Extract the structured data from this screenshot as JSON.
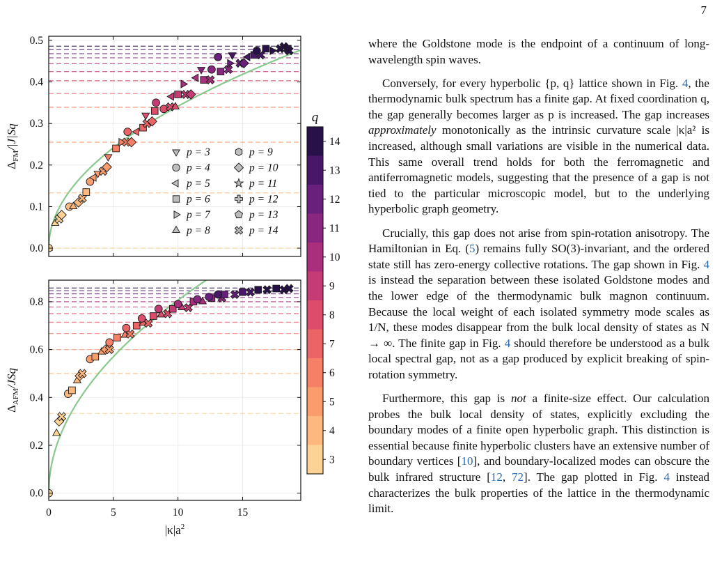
{
  "page_number": "7",
  "figure": {
    "top_panel": {
      "ylabel_main": "Δ",
      "ylabel_sub": "FM",
      "ylabel_tail": "/|J|Sq"
    },
    "bottom_panel": {
      "ylabel_main": "Δ",
      "ylabel_sub": "AFM",
      "ylabel_tail": "/JSq",
      "xlabel_main": "|κ|a",
      "xlabel_sup": "2"
    },
    "colorbar": {
      "label": "q",
      "ticks": [
        3,
        4,
        5,
        6,
        7,
        8,
        9,
        10,
        11,
        12,
        13,
        14
      ]
    },
    "legend": {
      "entries": [
        {
          "label": "p = 3",
          "marker": "triangle-down"
        },
        {
          "label": "p = 4",
          "marker": "circle"
        },
        {
          "label": "p = 5",
          "marker": "triangle-left"
        },
        {
          "label": "p = 6",
          "marker": "square"
        },
        {
          "label": "p = 7",
          "marker": "triangle-right"
        },
        {
          "label": "p = 8",
          "marker": "triangle-up"
        },
        {
          "label": "p = 9",
          "marker": "hexagon"
        },
        {
          "label": "p = 10",
          "marker": "diamond"
        },
        {
          "label": "p = 11",
          "marker": "star"
        },
        {
          "label": "p = 12",
          "marker": "plus"
        },
        {
          "label": "p = 13",
          "marker": "pentagon"
        },
        {
          "label": "p = 14",
          "marker": "x"
        }
      ]
    }
  },
  "chart_data": [
    {
      "type": "scatter",
      "panel": "top",
      "xlim": [
        0,
        19.5
      ],
      "ylim": [
        -0.02,
        0.51
      ],
      "xticks": [
        0,
        5,
        10,
        15
      ],
      "yticks": [
        0.0,
        0.1,
        0.2,
        0.3,
        0.4,
        0.5
      ],
      "ytick_labels": [
        "0.0",
        "0.1",
        "0.2",
        "0.3",
        "0.4",
        "0.5"
      ],
      "xtick_labels": [
        "",
        "",
        "",
        ""
      ],
      "grid": true,
      "legend_position": "center-right",
      "hlines_q": [
        3,
        4,
        5,
        6,
        7,
        8,
        9,
        10,
        11,
        12,
        13,
        14
      ],
      "hlines_y": [
        0.0,
        0.133,
        0.255,
        0.339,
        0.372,
        0.403,
        0.425,
        0.444,
        0.458,
        0.468,
        0.478,
        0.486
      ],
      "curve_coef": 0.108,
      "points": [
        {
          "x": 0.0,
          "y": 0.0,
          "q": 3,
          "m": "triangle-up"
        },
        {
          "x": 0.0,
          "y": 0.0,
          "q": 3,
          "m": "circle"
        },
        {
          "x": 0.5,
          "y": 0.06,
          "q": 3,
          "m": "triangle-up"
        },
        {
          "x": 0.8,
          "y": 0.07,
          "q": 3,
          "m": "x"
        },
        {
          "x": 1.0,
          "y": 0.08,
          "q": 3,
          "m": "diamond"
        },
        {
          "x": 1.6,
          "y": 0.1,
          "q": 4,
          "m": "circle"
        },
        {
          "x": 1.9,
          "y": 0.1,
          "q": 4,
          "m": "triangle-up"
        },
        {
          "x": 2.3,
          "y": 0.11,
          "q": 4,
          "m": "diamond"
        },
        {
          "x": 2.6,
          "y": 0.12,
          "q": 4,
          "m": "x"
        },
        {
          "x": 2.9,
          "y": 0.135,
          "q": 4,
          "m": "square"
        },
        {
          "x": 3.2,
          "y": 0.16,
          "q": 5,
          "m": "circle"
        },
        {
          "x": 3.5,
          "y": 0.17,
          "q": 5,
          "m": "triangle-left"
        },
        {
          "x": 3.8,
          "y": 0.18,
          "q": 5,
          "m": "triangle-down"
        },
        {
          "x": 4.2,
          "y": 0.185,
          "q": 5,
          "m": "x"
        },
        {
          "x": 4.5,
          "y": 0.195,
          "q": 5,
          "m": "diamond"
        },
        {
          "x": 4.6,
          "y": 0.22,
          "q": 6,
          "m": "triangle-down"
        },
        {
          "x": 5.2,
          "y": 0.24,
          "q": 6,
          "m": "square"
        },
        {
          "x": 5.6,
          "y": 0.255,
          "q": 6,
          "m": "triangle-right"
        },
        {
          "x": 6.0,
          "y": 0.255,
          "q": 6,
          "m": "x"
        },
        {
          "x": 6.4,
          "y": 0.255,
          "q": 6,
          "m": "diamond"
        },
        {
          "x": 6.1,
          "y": 0.28,
          "q": 7,
          "m": "circle"
        },
        {
          "x": 6.8,
          "y": 0.28,
          "q": 7,
          "m": "triangle-left"
        },
        {
          "x": 7.3,
          "y": 0.29,
          "q": 7,
          "m": "square"
        },
        {
          "x": 7.6,
          "y": 0.3,
          "q": 7,
          "m": "x"
        },
        {
          "x": 8.0,
          "y": 0.305,
          "q": 7,
          "m": "diamond"
        },
        {
          "x": 7.5,
          "y": 0.32,
          "q": 8,
          "m": "triangle-down"
        },
        {
          "x": 8.2,
          "y": 0.33,
          "q": 8,
          "m": "square"
        },
        {
          "x": 8.9,
          "y": 0.335,
          "q": 8,
          "m": "circle"
        },
        {
          "x": 9.4,
          "y": 0.34,
          "q": 8,
          "m": "x"
        },
        {
          "x": 9.8,
          "y": 0.34,
          "q": 8,
          "m": "triangle-up"
        },
        {
          "x": 8.3,
          "y": 0.35,
          "q": 9,
          "m": "circle"
        },
        {
          "x": 9.5,
          "y": 0.365,
          "q": 9,
          "m": "triangle-left"
        },
        {
          "x": 10.0,
          "y": 0.37,
          "q": 9,
          "m": "square"
        },
        {
          "x": 10.6,
          "y": 0.37,
          "q": 9,
          "m": "x"
        },
        {
          "x": 11.0,
          "y": 0.37,
          "q": 9,
          "m": "diamond"
        },
        {
          "x": 10.4,
          "y": 0.395,
          "q": 10,
          "m": "triangle-right"
        },
        {
          "x": 11.4,
          "y": 0.41,
          "q": 10,
          "m": "triangle-left"
        },
        {
          "x": 12.0,
          "y": 0.405,
          "q": 10,
          "m": "square"
        },
        {
          "x": 12.5,
          "y": 0.405,
          "q": 10,
          "m": "x"
        },
        {
          "x": 11.8,
          "y": 0.43,
          "q": 11,
          "m": "triangle-down"
        },
        {
          "x": 12.6,
          "y": 0.43,
          "q": 11,
          "m": "circle"
        },
        {
          "x": 13.3,
          "y": 0.425,
          "q": 11,
          "m": "square"
        },
        {
          "x": 13.9,
          "y": 0.43,
          "q": 11,
          "m": "x"
        },
        {
          "x": 13.1,
          "y": 0.46,
          "q": 12,
          "m": "circle"
        },
        {
          "x": 14.0,
          "y": 0.445,
          "q": 12,
          "m": "triangle-right"
        },
        {
          "x": 14.8,
          "y": 0.445,
          "q": 12,
          "m": "x"
        },
        {
          "x": 15.1,
          "y": 0.445,
          "q": 12,
          "m": "diamond"
        },
        {
          "x": 14.2,
          "y": 0.465,
          "q": 13,
          "m": "triangle-down"
        },
        {
          "x": 15.4,
          "y": 0.46,
          "q": 13,
          "m": "triangle-left"
        },
        {
          "x": 15.9,
          "y": 0.465,
          "q": 13,
          "m": "square"
        },
        {
          "x": 16.4,
          "y": 0.465,
          "q": 13,
          "m": "x"
        },
        {
          "x": 16.1,
          "y": 0.475,
          "q": 14,
          "m": "circle"
        },
        {
          "x": 16.8,
          "y": 0.48,
          "q": 14,
          "m": "square"
        },
        {
          "x": 17.3,
          "y": 0.475,
          "q": 14,
          "m": "triangle-right"
        },
        {
          "x": 17.9,
          "y": 0.48,
          "q": 14,
          "m": "x"
        },
        {
          "x": 18.2,
          "y": 0.485,
          "q": 14,
          "m": "x"
        },
        {
          "x": 18.5,
          "y": 0.48,
          "q": 14,
          "m": "square"
        },
        {
          "x": 18.6,
          "y": 0.475,
          "q": 14,
          "m": "x"
        }
      ]
    },
    {
      "type": "scatter",
      "panel": "bottom",
      "xlim": [
        0,
        19.5
      ],
      "ylim": [
        -0.03,
        0.89
      ],
      "xticks": [
        0,
        5,
        10,
        15
      ],
      "xtick_labels": [
        "0",
        "5",
        "10",
        "15"
      ],
      "yticks": [
        0.0,
        0.2,
        0.4,
        0.6,
        0.8
      ],
      "ytick_labels": [
        "0.0",
        "0.2",
        "0.4",
        "0.6",
        "0.8"
      ],
      "xlabel": "|κ|a²",
      "grid": true,
      "hlines_q": [
        3,
        4,
        5,
        6,
        7,
        8,
        9,
        10,
        11,
        12,
        13,
        14
      ],
      "hlines_y": [
        0.333,
        0.5,
        0.6,
        0.667,
        0.714,
        0.75,
        0.778,
        0.8,
        0.818,
        0.833,
        0.846,
        0.857
      ],
      "curve_coef": 0.255,
      "points": [
        {
          "x": 0.0,
          "y": 0.0,
          "q": 3,
          "m": "circle"
        },
        {
          "x": 0.6,
          "y": 0.25,
          "q": 3,
          "m": "triangle-up"
        },
        {
          "x": 0.8,
          "y": 0.3,
          "q": 3,
          "m": "diamond"
        },
        {
          "x": 1.0,
          "y": 0.32,
          "q": 3,
          "m": "x"
        },
        {
          "x": 1.5,
          "y": 0.415,
          "q": 4,
          "m": "circle"
        },
        {
          "x": 1.8,
          "y": 0.43,
          "q": 4,
          "m": "square"
        },
        {
          "x": 2.2,
          "y": 0.47,
          "q": 4,
          "m": "triangle-up"
        },
        {
          "x": 2.4,
          "y": 0.49,
          "q": 4,
          "m": "diamond"
        },
        {
          "x": 2.6,
          "y": 0.5,
          "q": 4,
          "m": "x"
        },
        {
          "x": 3.2,
          "y": 0.56,
          "q": 5,
          "m": "circle"
        },
        {
          "x": 3.6,
          "y": 0.57,
          "q": 5,
          "m": "square"
        },
        {
          "x": 4.1,
          "y": 0.59,
          "q": 5,
          "m": "triangle-up"
        },
        {
          "x": 4.4,
          "y": 0.6,
          "q": 5,
          "m": "diamond"
        },
        {
          "x": 4.7,
          "y": 0.6,
          "q": 5,
          "m": "x"
        },
        {
          "x": 4.7,
          "y": 0.63,
          "q": 6,
          "m": "circle"
        },
        {
          "x": 5.3,
          "y": 0.65,
          "q": 6,
          "m": "square"
        },
        {
          "x": 5.9,
          "y": 0.66,
          "q": 6,
          "m": "triangle-up"
        },
        {
          "x": 6.3,
          "y": 0.665,
          "q": 6,
          "m": "x"
        },
        {
          "x": 6.0,
          "y": 0.69,
          "q": 7,
          "m": "circle"
        },
        {
          "x": 6.8,
          "y": 0.7,
          "q": 7,
          "m": "square"
        },
        {
          "x": 7.3,
          "y": 0.71,
          "q": 7,
          "m": "triangle-up"
        },
        {
          "x": 7.7,
          "y": 0.71,
          "q": 7,
          "m": "x"
        },
        {
          "x": 7.2,
          "y": 0.73,
          "q": 8,
          "m": "circle"
        },
        {
          "x": 8.1,
          "y": 0.74,
          "q": 8,
          "m": "square"
        },
        {
          "x": 8.7,
          "y": 0.745,
          "q": 8,
          "m": "triangle-up"
        },
        {
          "x": 9.2,
          "y": 0.75,
          "q": 8,
          "m": "x"
        },
        {
          "x": 8.5,
          "y": 0.77,
          "q": 9,
          "m": "circle"
        },
        {
          "x": 9.6,
          "y": 0.77,
          "q": 9,
          "m": "square"
        },
        {
          "x": 10.3,
          "y": 0.775,
          "q": 9,
          "m": "triangle-up"
        },
        {
          "x": 10.8,
          "y": 0.775,
          "q": 9,
          "m": "x"
        },
        {
          "x": 10.0,
          "y": 0.79,
          "q": 10,
          "m": "circle"
        },
        {
          "x": 11.2,
          "y": 0.8,
          "q": 10,
          "m": "square"
        },
        {
          "x": 11.9,
          "y": 0.8,
          "q": 10,
          "m": "triangle-up"
        },
        {
          "x": 11.5,
          "y": 0.81,
          "q": 11,
          "m": "circle"
        },
        {
          "x": 12.6,
          "y": 0.815,
          "q": 11,
          "m": "square"
        },
        {
          "x": 13.4,
          "y": 0.815,
          "q": 11,
          "m": "x"
        },
        {
          "x": 12.4,
          "y": 0.82,
          "q": 12,
          "m": "circle"
        },
        {
          "x": 13.6,
          "y": 0.83,
          "q": 12,
          "m": "square"
        },
        {
          "x": 14.4,
          "y": 0.83,
          "q": 12,
          "m": "x"
        },
        {
          "x": 13.1,
          "y": 0.83,
          "q": 13,
          "m": "circle"
        },
        {
          "x": 15.0,
          "y": 0.84,
          "q": 13,
          "m": "square"
        },
        {
          "x": 15.6,
          "y": 0.84,
          "q": 13,
          "m": "x"
        },
        {
          "x": 16.2,
          "y": 0.85,
          "q": 14,
          "m": "square"
        },
        {
          "x": 16.9,
          "y": 0.85,
          "q": 14,
          "m": "x"
        },
        {
          "x": 17.6,
          "y": 0.855,
          "q": 14,
          "m": "square"
        },
        {
          "x": 18.2,
          "y": 0.85,
          "q": 14,
          "m": "x"
        },
        {
          "x": 18.6,
          "y": 0.855,
          "q": 14,
          "m": "x"
        }
      ]
    }
  ],
  "body": {
    "p1": [
      {
        "t": "where the Goldstone mode is the endpoint of a continuum of long-wavelength spin waves."
      }
    ],
    "p2": [
      {
        "t": "Conversely, for every hyperbolic {p, q} lattice shown in Fig. "
      },
      {
        "t": "4",
        "ref": true
      },
      {
        "t": ", the thermodynamic bulk spectrum has a finite gap. At fixed coordination q, the gap generally becomes larger as p is increased. The gap increases "
      },
      {
        "t": "approximately",
        "em": true
      },
      {
        "t": " monotonically as the intrinsic curvature scale |κ|a² is increased, although small variations are visible in the numerical data. This same overall trend holds for both the ferromagnetic and antiferromagnetic models, suggesting that the presence of a gap is not tied to the particular microscopic model, but to the underlying hyperbolic graph geometry."
      }
    ],
    "p3": [
      {
        "t": "Crucially, this gap does not arise from spin-rotation anisotropy. The Hamiltonian in Eq. ("
      },
      {
        "t": "5",
        "ref": true
      },
      {
        "t": ") remains fully SO(3)-invariant, and the ordered state still has zero-energy collective rotations. The gap shown in Fig. "
      },
      {
        "t": "4",
        "ref": true
      },
      {
        "t": " is instead the separation between these isolated Goldstone modes and the lower edge of the thermodynamic bulk magnon continuum. Because the local weight of each isolated symmetry mode scales as 1/N, these modes disappear from the bulk local density of states as N → ∞. The finite gap in Fig. "
      },
      {
        "t": "4",
        "ref": true
      },
      {
        "t": " should therefore be understood as a bulk local spectral gap, not as a gap produced by explicit breaking of spin-rotation symmetry."
      }
    ],
    "p4": [
      {
        "t": "Furthermore, this gap is "
      },
      {
        "t": "not",
        "em": true
      },
      {
        "t": " a finite-size effect. Our calculation probes the bulk local density of states, explicitly excluding the boundary modes of a finite open hyperbolic graph. This distinction is essential because finite hyperbolic clusters have an extensive number of boundary vertices ["
      },
      {
        "t": "10",
        "ref": true
      },
      {
        "t": "], and boundary-localized modes can obscure the bulk infrared structure ["
      },
      {
        "t": "12",
        "ref": true
      },
      {
        "t": ", "
      },
      {
        "t": "72",
        "ref": true
      },
      {
        "t": "]. The gap plotted in Fig. "
      },
      {
        "t": "4",
        "ref": true
      },
      {
        "t": " instead characterizes the bulk properties of the lattice in the thermodynamic limit."
      }
    ]
  }
}
